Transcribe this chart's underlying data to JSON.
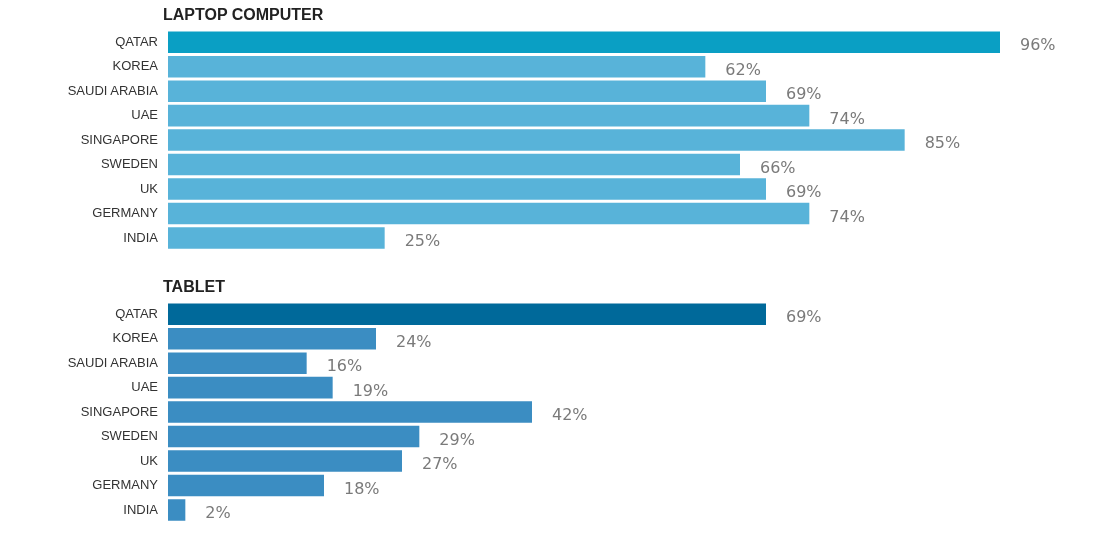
{
  "chart_data": [
    {
      "type": "bar",
      "orientation": "horizontal",
      "title": "LAPTOP COMPUTER",
      "categories": [
        "QATAR",
        "KOREA",
        "SAUDI ARABIA",
        "UAE",
        "SINGAPORE",
        "SWEDEN",
        "UK",
        "GERMANY",
        "INDIA"
      ],
      "values": [
        96,
        62,
        69,
        74,
        85,
        66,
        69,
        74,
        25
      ],
      "value_labels": [
        "96%",
        "62%",
        "69%",
        "74%",
        "85%",
        "66%",
        "69%",
        "74%",
        "25%"
      ],
      "colors": [
        "#0a9fc4",
        "#58b3d9",
        "#58b3d9",
        "#58b3d9",
        "#58b3d9",
        "#58b3d9",
        "#58b3d9",
        "#58b3d9",
        "#58b3d9"
      ],
      "tick_labels": "y"
    },
    {
      "type": "bar",
      "orientation": "horizontal",
      "title": "TABLET",
      "categories": [
        "QATAR",
        "KOREA",
        "SAUDI ARABIA",
        "UAE",
        "SINGAPORE",
        "SWEDEN",
        "UK",
        "GERMANY",
        "INDIA"
      ],
      "values": [
        69,
        24,
        16,
        19,
        42,
        29,
        27,
        18,
        2
      ],
      "value_labels": [
        "69%",
        "24%",
        "16%",
        "19%",
        "42%",
        "29%",
        "27%",
        "18%",
        "2%"
      ],
      "colors": [
        "#00699a",
        "#3b8dc2",
        "#3b8dc2",
        "#3b8dc2",
        "#3b8dc2",
        "#3b8dc2",
        "#3b8dc2",
        "#3b8dc2",
        "#3b8dc2"
      ],
      "tick_labels": "y"
    }
  ]
}
